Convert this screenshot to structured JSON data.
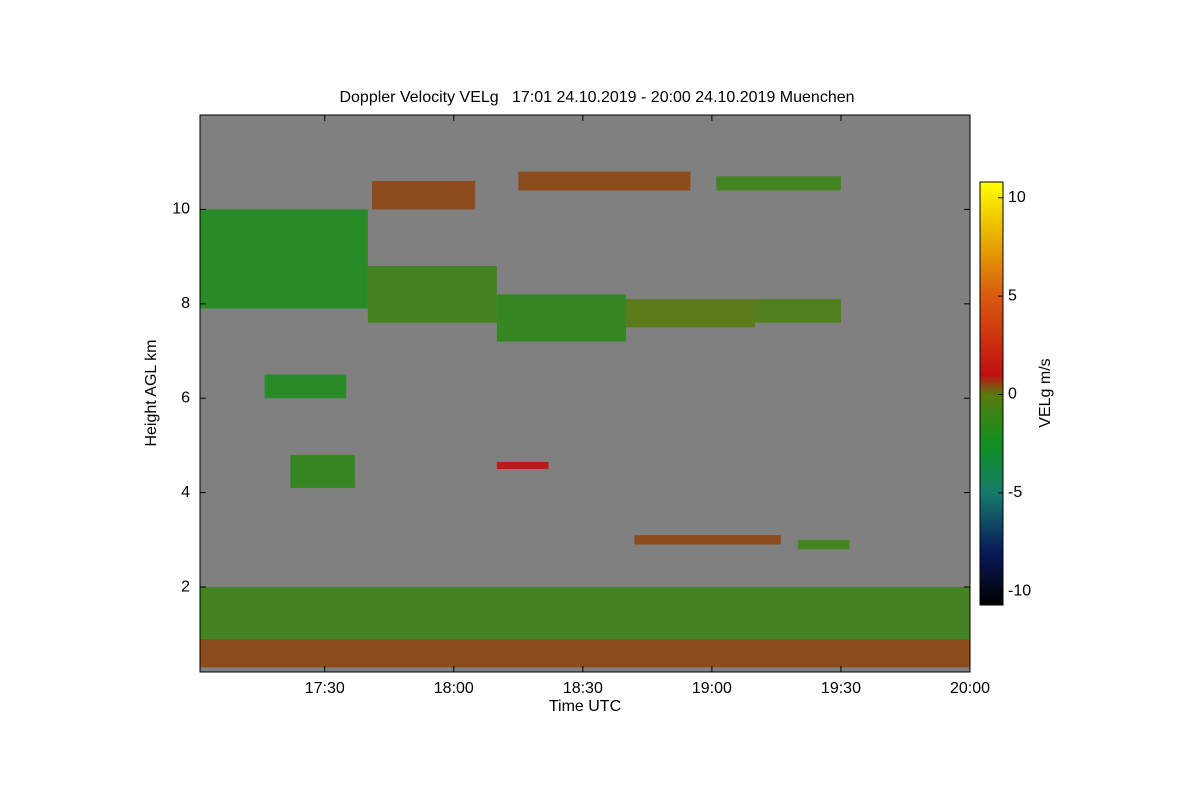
{
  "chart_data": {
    "type": "heatmap",
    "title": "Doppler Velocity VELg   17:01 24.10.2019 - 20:00 24.10.2019 Muenchen",
    "x_label": "Time UTC",
    "y_label": "Height AGL km",
    "xlim": [
      17.0167,
      20
    ],
    "xticks": [
      {
        "value": 17.5,
        "label": "17:30"
      },
      {
        "value": 18,
        "label": "18:00"
      },
      {
        "value": 18.5,
        "label": "18:30"
      },
      {
        "value": 19,
        "label": "19:00"
      },
      {
        "value": 19.5,
        "label": "19:30"
      },
      {
        "value": 20,
        "label": "20:00"
      }
    ],
    "ylim": [
      0.2,
      12
    ],
    "yticks": [
      2,
      4,
      6,
      8,
      10
    ],
    "background": "#808080",
    "colorbar_label": "VELg m/s",
    "colorbar_lim": [
      -10.7,
      10.8
    ],
    "colorbar_ticks": [
      -10,
      -5,
      0,
      5,
      10
    ],
    "colormap": [
      [
        -10.7,
        "#000000"
      ],
      [
        -8,
        "#0a1a5a"
      ],
      [
        -5,
        "#157a6a"
      ],
      [
        -2.5,
        "#109020"
      ],
      [
        0,
        "#5a7a10"
      ],
      [
        1,
        "#c01010"
      ],
      [
        5,
        "#d85a10"
      ],
      [
        8,
        "#e8b000"
      ],
      [
        10.8,
        "#ffff00"
      ]
    ],
    "cells": [
      {
        "t": [
          17.0167,
          17.667
        ],
        "h": [
          7.9,
          10.0
        ],
        "v": -2
      },
      {
        "t": [
          17.667,
          18.167
        ],
        "h": [
          7.6,
          8.8
        ],
        "v": -1
      },
      {
        "t": [
          18.167,
          18.667
        ],
        "h": [
          7.2,
          8.2
        ],
        "v": -1.5
      },
      {
        "t": [
          18.667,
          19.167
        ],
        "h": [
          7.5,
          8.1
        ],
        "v": 0
      },
      {
        "t": [
          19.167,
          19.5
        ],
        "h": [
          7.6,
          8.1
        ],
        "v": -0.5
      },
      {
        "t": [
          17.683,
          18.083
        ],
        "h": [
          10.0,
          10.6
        ],
        "v": 0.5
      },
      {
        "t": [
          18.25,
          18.917
        ],
        "h": [
          10.4,
          10.8
        ],
        "v": 0.5
      },
      {
        "t": [
          19.017,
          19.5
        ],
        "h": [
          10.4,
          10.7
        ],
        "v": -1
      },
      {
        "t": [
          17.267,
          17.583
        ],
        "h": [
          6.0,
          6.5
        ],
        "v": -2
      },
      {
        "t": [
          17.367,
          17.617
        ],
        "h": [
          4.1,
          4.8
        ],
        "v": -1.5
      },
      {
        "t": [
          18.167,
          18.367
        ],
        "h": [
          4.5,
          4.65
        ],
        "v": 1
      },
      {
        "t": [
          18.7,
          19.267
        ],
        "h": [
          2.9,
          3.1
        ],
        "v": 0.5
      },
      {
        "t": [
          19.333,
          19.533
        ],
        "h": [
          2.8,
          3.0
        ],
        "v": -1
      },
      {
        "t": [
          17.0167,
          20
        ],
        "h": [
          0.9,
          2.0
        ],
        "v": -1
      },
      {
        "t": [
          17.0167,
          20
        ],
        "h": [
          0.3,
          0.9
        ],
        "v": 0.5
      }
    ]
  }
}
